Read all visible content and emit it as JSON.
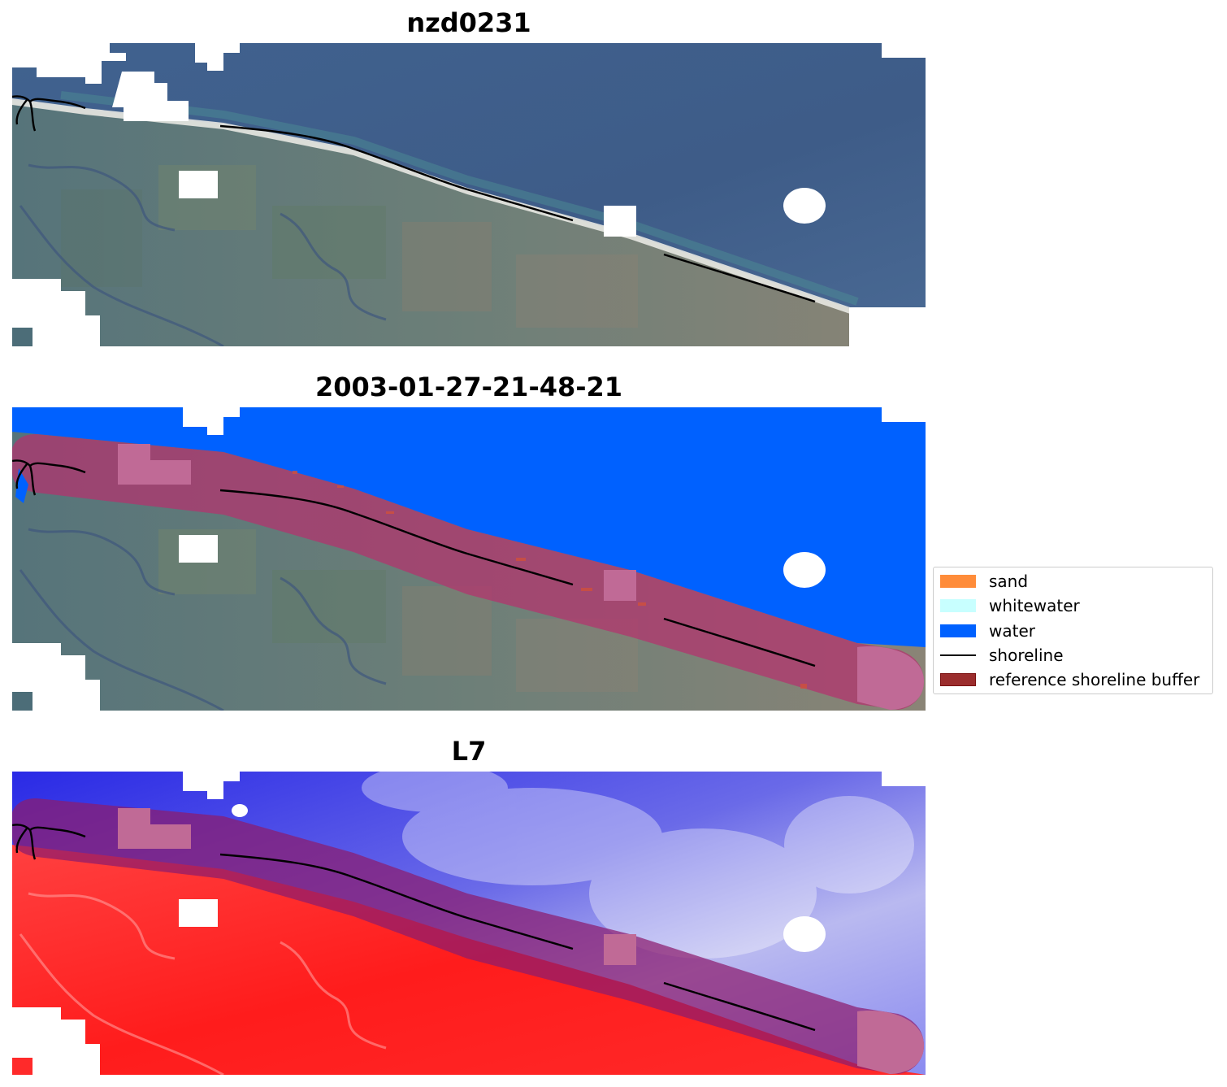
{
  "panels": [
    {
      "title": "nzd0231",
      "kind": "rgb"
    },
    {
      "title": "2003-01-27-21-48-21",
      "kind": "classified"
    },
    {
      "title": "L7",
      "kind": "index"
    }
  ],
  "legend": {
    "items": [
      {
        "label": "sand",
        "color": "#ff8c3a",
        "type": "patch"
      },
      {
        "label": "whitewater",
        "color": "#c8ffff",
        "type": "patch"
      },
      {
        "label": "water",
        "color": "#0061ff",
        "type": "patch"
      },
      {
        "label": "shoreline",
        "color": "#000000",
        "type": "line"
      },
      {
        "label": "reference shoreline buffer",
        "color": "#9b2d2d",
        "edge": "#7a1010",
        "type": "patch"
      }
    ]
  },
  "colors": {
    "ocean": "#3f5f8c",
    "land": "#5f7f80",
    "water_class": "#0061ff",
    "buffer_overlay": "#b4326e",
    "index_water": "#3a3ae8",
    "index_land": "#ff2a2a",
    "cloud_mask": "#ffffff"
  }
}
